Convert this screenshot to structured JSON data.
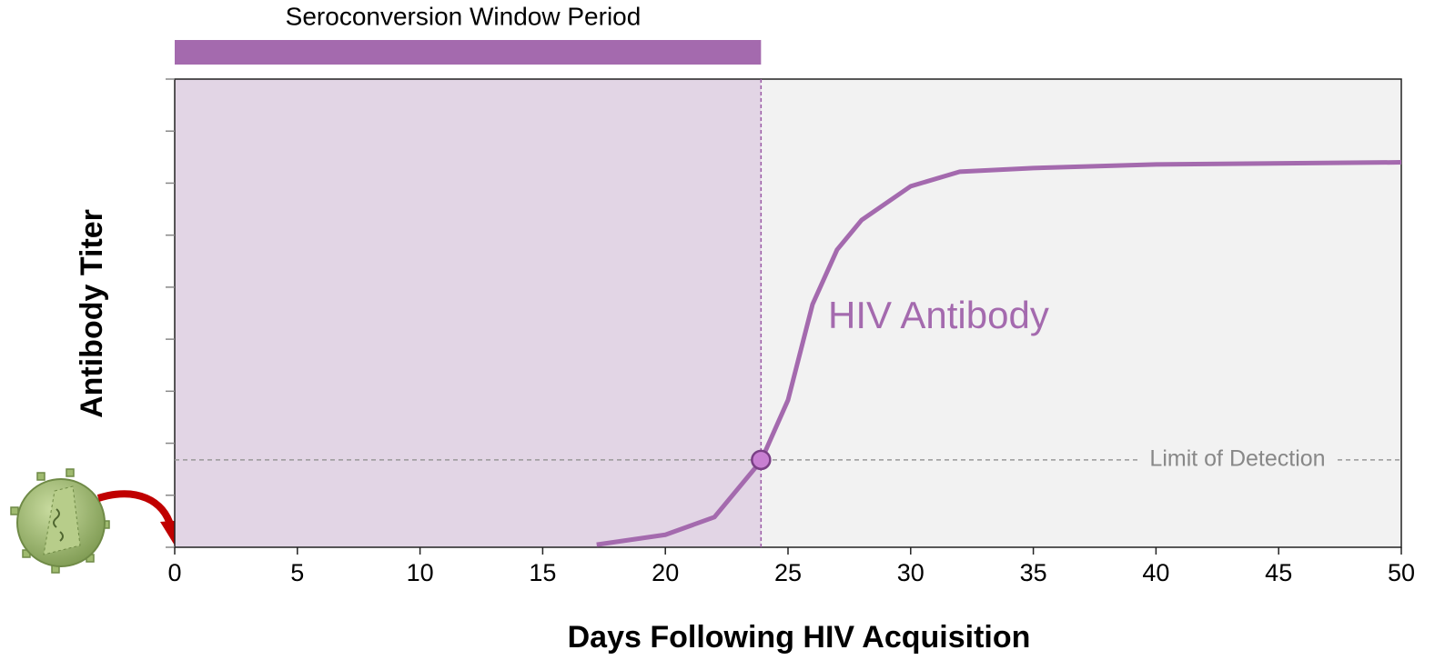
{
  "chart_data": {
    "type": "line",
    "x_label": "Days Following HIV Acquisition",
    "y_label": "Antibody Titer",
    "window": {
      "label": "Seroconversion Window Period",
      "start": 0,
      "end": 23.9,
      "color": "#a46aae",
      "shade": "#e2d5e5"
    },
    "detection": {
      "label": "Limit of Detection",
      "value": 1.68
    },
    "series": [
      {
        "name": "HIV Antibody",
        "color": "#a46aae",
        "x": [
          17.2,
          20,
          22,
          23.9,
          25,
          26,
          27,
          28,
          30,
          32,
          35,
          40,
          50
        ],
        "values": [
          0.05,
          0.24,
          0.58,
          1.66,
          2.83,
          4.67,
          5.72,
          6.29,
          6.94,
          7.22,
          7.29,
          7.36,
          7.4
        ]
      }
    ],
    "xlim": [
      0,
      50
    ],
    "xticks": [
      0,
      5,
      10,
      15,
      20,
      25,
      30,
      35,
      40,
      45,
      50
    ],
    "ylim": [
      0,
      9
    ],
    "yticks": [
      0,
      1,
      2,
      3,
      4,
      5,
      6,
      7,
      8,
      9
    ],
    "background": "#f2f2f2"
  }
}
